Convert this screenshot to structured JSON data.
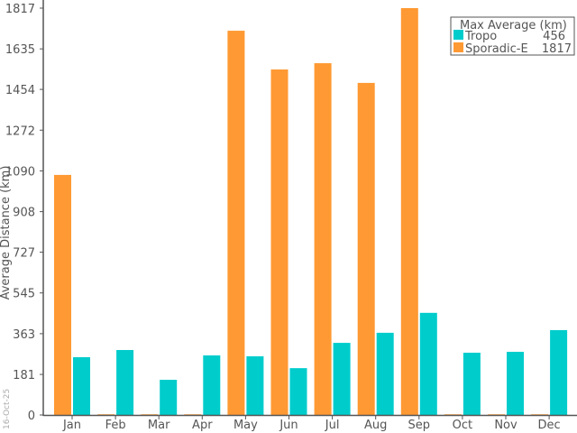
{
  "chart_data": {
    "type": "bar",
    "title": "",
    "xlabel": "",
    "ylabel": "Average Distance (km)",
    "ylim": [
      0,
      1817
    ],
    "yticks": [
      "0",
      "181",
      "363",
      "545",
      "727",
      "908",
      "1090",
      "1272",
      "1454",
      "1635",
      "1817"
    ],
    "categories": [
      "Jan",
      "Feb",
      "Mar",
      "Apr",
      "May",
      "Jun",
      "Jul",
      "Aug",
      "Sep",
      "Oct",
      "Nov",
      "Dec"
    ],
    "series": [
      {
        "name": "Sporadic-E",
        "color": "#ff9933",
        "values": [
          1072,
          3,
          3,
          3,
          1716,
          1543,
          1571,
          1483,
          1817,
          3,
          3,
          3
        ]
      },
      {
        "name": "Tropo",
        "color": "#00cccc",
        "values": [
          258,
          290,
          157,
          266,
          262,
          209,
          322,
          367,
          456,
          278,
          282,
          379
        ]
      }
    ],
    "legend": {
      "title": "Max Average (km)",
      "position": "top-right",
      "entries": [
        {
          "name": "Tropo",
          "value": "456",
          "color": "#00cccc"
        },
        {
          "name": "Sporadic-E",
          "value": "1817",
          "color": "#ff9933"
        }
      ]
    },
    "grid": false,
    "date_stamp": "16-Oct-25"
  }
}
